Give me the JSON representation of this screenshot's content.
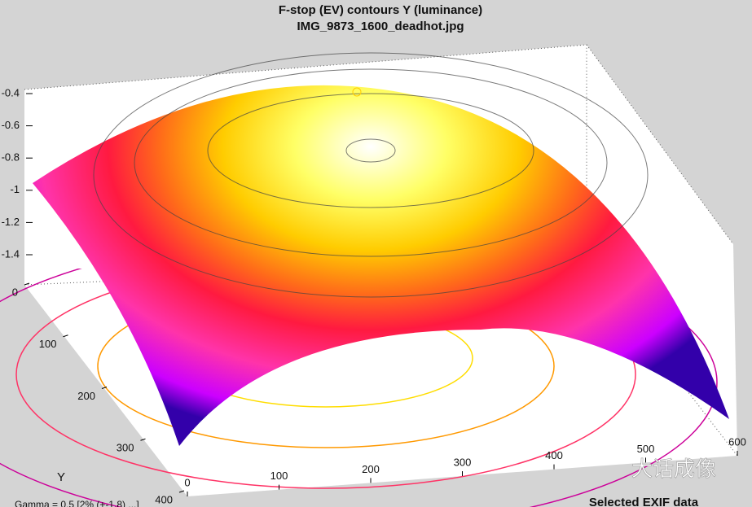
{
  "chart_data": {
    "type": "surface",
    "title": [
      "F-stop (EV) contours   Y (luminance)",
      "IMG_9873_1600_deadhot.jpg"
    ],
    "ylabel": "Y",
    "xlabel": "Selected EXIF data",
    "footer": "Gamma = 0.5 [2% (+-1.8) ...]",
    "watermark": "大话成像",
    "xlim": [
      0,
      600
    ],
    "xticks": [
      0,
      100,
      200,
      300,
      400,
      500,
      600
    ],
    "ylim": [
      0,
      400
    ],
    "yticks": [
      0,
      100,
      200,
      300,
      400
    ],
    "zlim": [
      -1.4,
      -0.4
    ],
    "zticks": [
      -0.4,
      -0.6,
      -0.8,
      -1,
      -1.2,
      -1.4
    ]
  }
}
